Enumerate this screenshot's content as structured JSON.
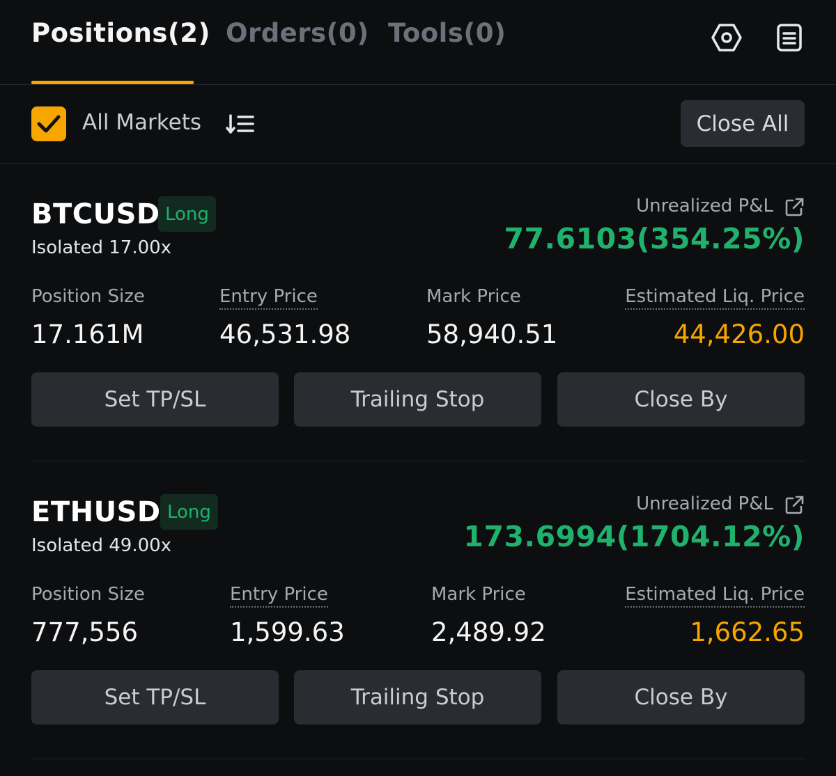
{
  "tabs": [
    {
      "label": "Positions(2)",
      "active": true
    },
    {
      "label": "Orders(0)",
      "active": false
    },
    {
      "label": "Tools(0)",
      "active": false
    }
  ],
  "header_icons": [
    "settings-hexagon-icon",
    "document-list-icon"
  ],
  "filter": {
    "all_markets_label": "All Markets",
    "all_markets_checked": true,
    "close_all_label": "Close All"
  },
  "colors": {
    "accent": "#f7a600",
    "profit": "#20b26c",
    "background": "#0d0e10",
    "button": "#2a2c31"
  },
  "positions": [
    {
      "symbol": "BTCUSD",
      "side": "Long",
      "margin_mode": "Isolated 17.00x",
      "pnl_label": "Unrealized P&L",
      "pnl_value": "77.6103(354.25%)",
      "labels": {
        "size": "Position Size",
        "entry": "Entry Price",
        "mark": "Mark Price",
        "liq": "Estimated Liq. Price"
      },
      "values": {
        "size": "17.161M",
        "entry": "46,531.98",
        "mark": "58,940.51",
        "liq": "44,426.00"
      },
      "buttons": {
        "tpsl": "Set TP/SL",
        "trailing": "Trailing Stop",
        "close_by": "Close By"
      }
    },
    {
      "symbol": "ETHUSD",
      "side": "Long",
      "margin_mode": "Isolated 49.00x",
      "pnl_label": "Unrealized P&L",
      "pnl_value": "173.6994(1704.12%)",
      "labels": {
        "size": "Position Size",
        "entry": "Entry Price",
        "mark": "Mark Price",
        "liq": "Estimated Liq. Price"
      },
      "values": {
        "size": "777,556",
        "entry": "1,599.63",
        "mark": "2,489.92",
        "liq": "1,662.65"
      },
      "buttons": {
        "tpsl": "Set TP/SL",
        "trailing": "Trailing Stop",
        "close_by": "Close By"
      }
    }
  ]
}
